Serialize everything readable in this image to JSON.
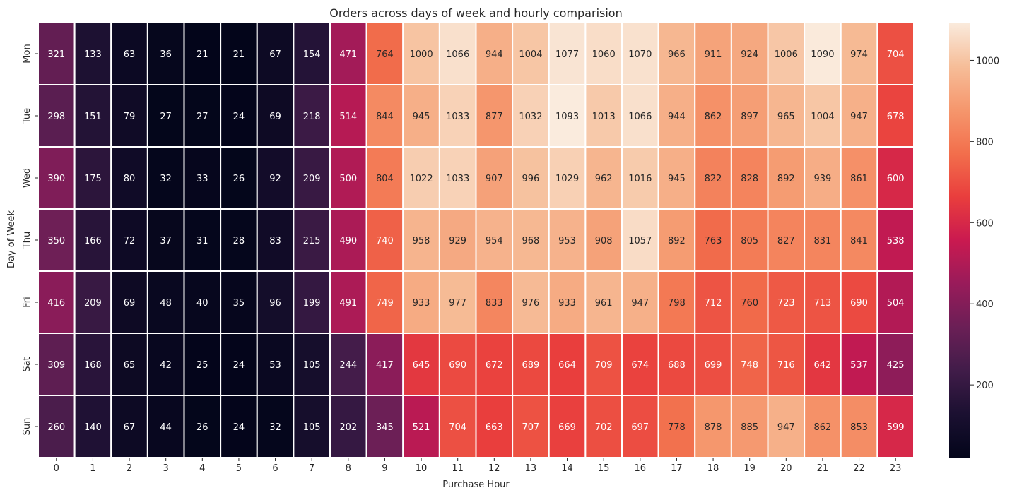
{
  "chart_data": {
    "type": "heatmap",
    "title": "Orders across days of week and hourly comparision",
    "xlabel": "Purchase Hour",
    "ylabel": "Day of Week",
    "x": [
      "0",
      "1",
      "2",
      "3",
      "4",
      "5",
      "6",
      "7",
      "8",
      "9",
      "10",
      "11",
      "12",
      "13",
      "14",
      "15",
      "16",
      "17",
      "18",
      "19",
      "20",
      "21",
      "22",
      "23"
    ],
    "y": [
      "Mon",
      "Tue",
      "Wed",
      "Thu",
      "Fri",
      "Sat",
      "Sun"
    ],
    "values": [
      [
        321,
        133,
        63,
        36,
        21,
        21,
        67,
        154,
        471,
        764,
        1000,
        1066,
        944,
        1004,
        1077,
        1060,
        1070,
        966,
        911,
        924,
        1006,
        1090,
        974,
        704
      ],
      [
        298,
        151,
        79,
        27,
        27,
        24,
        69,
        218,
        514,
        844,
        945,
        1033,
        877,
        1032,
        1093,
        1013,
        1066,
        944,
        862,
        897,
        965,
        1004,
        947,
        678
      ],
      [
        390,
        175,
        80,
        32,
        33,
        26,
        92,
        209,
        500,
        804,
        1022,
        1033,
        907,
        996,
        1029,
        962,
        1016,
        945,
        822,
        828,
        892,
        939,
        861,
        600
      ],
      [
        350,
        166,
        72,
        37,
        31,
        28,
        83,
        215,
        490,
        740,
        958,
        929,
        954,
        968,
        953,
        908,
        1057,
        892,
        763,
        805,
        827,
        831,
        841,
        538
      ],
      [
        416,
        209,
        69,
        48,
        40,
        35,
        96,
        199,
        491,
        749,
        933,
        977,
        833,
        976,
        933,
        961,
        947,
        798,
        712,
        760,
        723,
        713,
        690,
        504
      ],
      [
        309,
        168,
        65,
        42,
        25,
        24,
        53,
        105,
        244,
        417,
        645,
        690,
        672,
        689,
        664,
        709,
        674,
        688,
        699,
        748,
        716,
        642,
        537,
        425
      ],
      [
        260,
        140,
        67,
        44,
        26,
        24,
        32,
        105,
        202,
        345,
        521,
        704,
        663,
        707,
        669,
        702,
        697,
        778,
        878,
        885,
        947,
        862,
        853,
        599
      ]
    ],
    "colormap": "rocket",
    "vmin": 21,
    "vmax": 1093,
    "colorbar_ticks": [
      "200",
      "400",
      "600",
      "800",
      "1000"
    ],
    "grid_line_color": "#ffffff"
  }
}
